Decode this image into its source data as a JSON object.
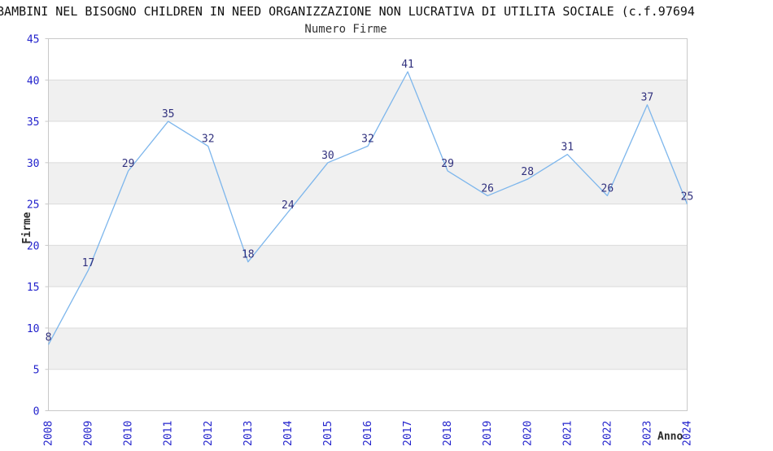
{
  "chart_data": {
    "type": "line",
    "title": "BAMBINI NEL BISOGNO CHILDREN IN NEED ORGANIZZAZIONE NON LUCRATIVA DI UTILITA SOCIALE (c.f.97694",
    "subtitle": "Numero Firme",
    "xlabel": "Anno",
    "ylabel": "Firme",
    "categories": [
      "2008",
      "2009",
      "2010",
      "2011",
      "2012",
      "2013",
      "2014",
      "2015",
      "2016",
      "2017",
      "2018",
      "2019",
      "2020",
      "2021",
      "2022",
      "2023",
      "2024"
    ],
    "series": [
      {
        "name": "Numero Firme",
        "values": [
          8,
          17,
          29,
          35,
          32,
          18,
          24,
          30,
          32,
          41,
          29,
          26,
          28,
          31,
          26,
          37,
          25
        ]
      }
    ],
    "ylim": [
      0,
      45
    ],
    "ytick_interval": 5,
    "yticks": [
      0,
      5,
      10,
      15,
      20,
      25,
      30,
      35,
      40,
      45
    ],
    "point_labels": true,
    "markers": false,
    "legend": "none",
    "grid": "horizontal gridlines every 5 with alternating shaded bands",
    "x_tick_rotation": -90,
    "colors": {
      "line": "#7db6ec",
      "data_label": "#31317e",
      "tick_label": "#2323cc",
      "band": "#f0f0f0",
      "gridline": "#dbdbdb",
      "border": "#c9c9c9",
      "title": "#111111",
      "subtitle": "#333333",
      "axis_title": "#2b2b2b",
      "background": "#ffffff"
    }
  }
}
